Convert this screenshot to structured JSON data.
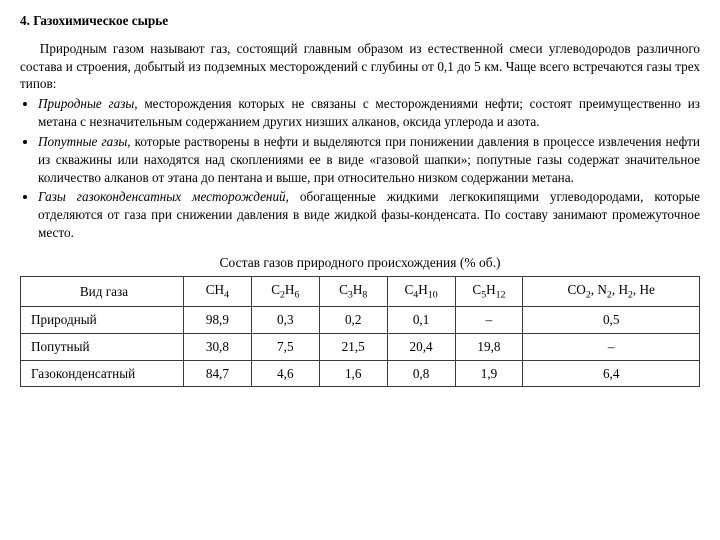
{
  "heading": "4. Газохимическое сырье",
  "intro": "Природным газом называют газ, состоящий главным образом из естественной смеси углеводородов различного состава и строения, добытый из подземных месторождений с глубины от 0,1 до 5 км. Чаще всего встречаются газы трех типов:",
  "bullets": [
    {
      "em": "Природные газы,",
      "rest": " месторождения которых не связаны с месторождениями нефти; состоят преимущественно из метана с незначительным содержанием других низших алканов, оксида углерода и азота."
    },
    {
      "em": "Попутные газы,",
      "rest": " которые растворены в нефти и выделяются при понижении давления в процессе извлечения нефти из скважины или находятся над скоплениями ее в виде «газовой шапки»; попутные газы содержат значительное количество алканов от этана до пентана и выше, при относительно низком содержании метана."
    },
    {
      "em": "Газы газоконденсатных месторождений,",
      "rest": " обогащенные жидкими легкокипящими углеводородами, которые отделяются от газа при снижении давления в виде жидкой фазы-конденсата. По составу занимают промежуточное место."
    }
  ],
  "table": {
    "title": "Состав газов природного происхождения (% об.)",
    "col0_header": "Вид газа",
    "column_widths_pct": [
      24,
      10,
      10,
      10,
      10,
      10,
      26
    ],
    "chem_columns": [
      {
        "base": "CH",
        "sub": "4"
      },
      {
        "base": "C",
        "sub": "2",
        "tail": "H",
        "sub2": "6"
      },
      {
        "base": "C",
        "sub": "3",
        "tail": "H",
        "sub2": "8"
      },
      {
        "base": "C",
        "sub": "4",
        "tail": "H",
        "sub2": "10"
      },
      {
        "base": "C",
        "sub": "5",
        "tail": "H",
        "sub2": "12"
      }
    ],
    "last_column_parts": {
      "p1base": "CO",
      "p1sub": "2",
      "sep1": ", ",
      "p2base": "N",
      "p2sub": "2",
      "sep2": ", ",
      "p3base": "H",
      "p3sub": "2",
      "sep3": ", ",
      "p4": "He"
    },
    "rows": [
      {
        "name": "Природный",
        "cells": [
          "98,9",
          "0,3",
          "0,2",
          "0,1",
          "–",
          "0,5"
        ]
      },
      {
        "name": "Попутный",
        "cells": [
          "30,8",
          "7,5",
          "21,5",
          "20,4",
          "19,8",
          "–"
        ]
      },
      {
        "name": "Газоконденсатный",
        "cells": [
          "84,7",
          "4,6",
          "1,6",
          "0,8",
          "1,9",
          "6,4"
        ]
      }
    ]
  },
  "colors": {
    "text": "#000000",
    "border": "#3b3b3b",
    "background": "#ffffff"
  }
}
